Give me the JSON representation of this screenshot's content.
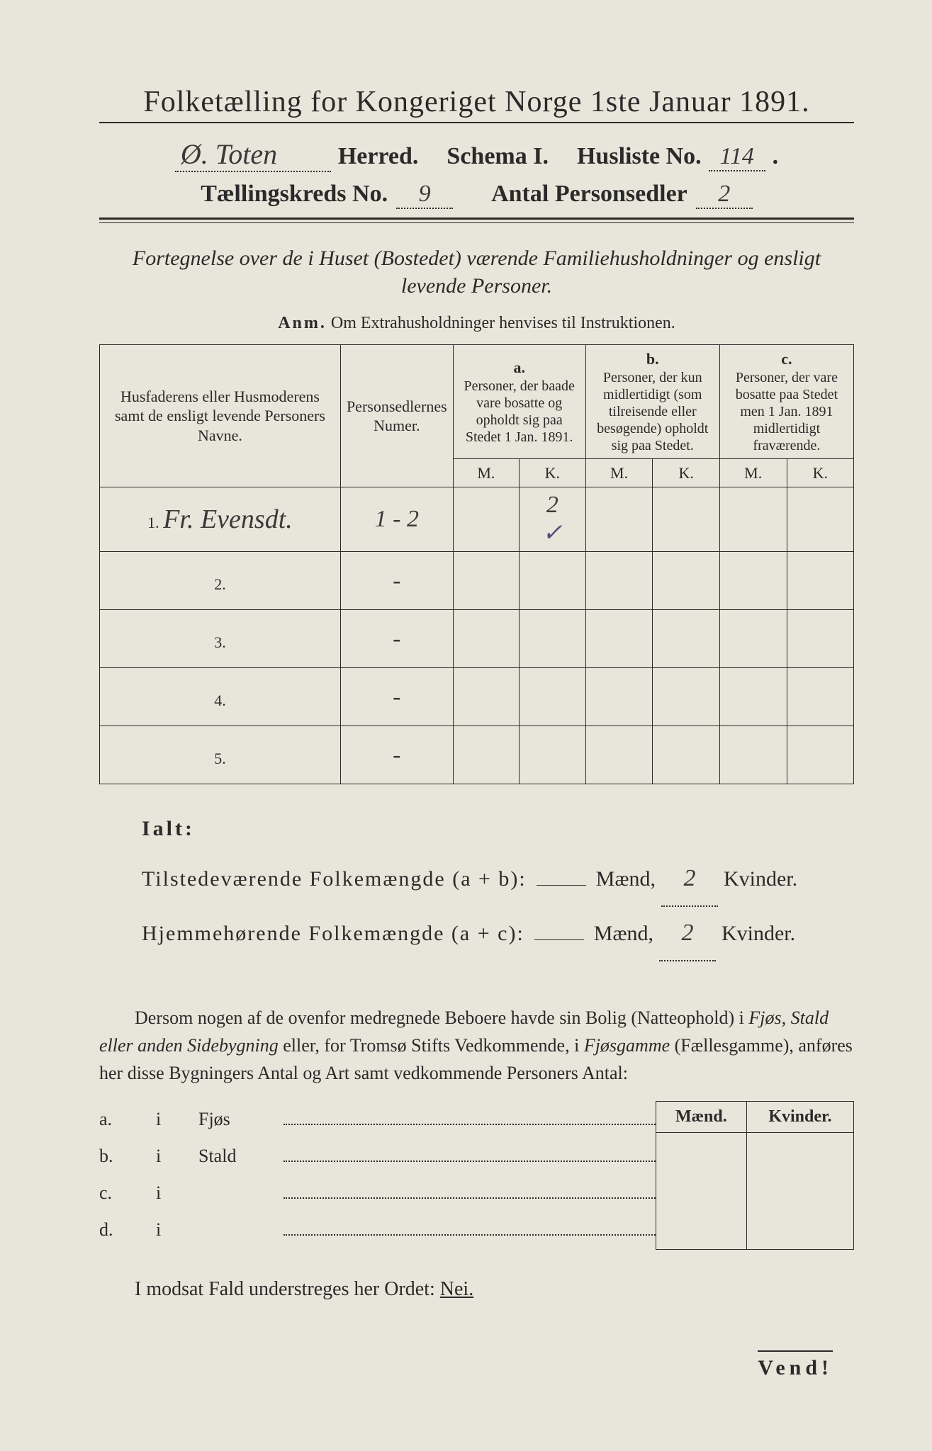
{
  "header": {
    "title": "Folketælling for Kongeriget Norge 1ste Januar 1891.",
    "herred_value": "Ø. Toten",
    "herred_label": "Herred.",
    "schema_label": "Schema I.",
    "husliste_label": "Husliste No.",
    "husliste_value": "114",
    "kreds_label": "Tællingskreds No.",
    "kreds_value": "9",
    "personsedler_label": "Antal Personsedler",
    "personsedler_value": "2"
  },
  "subtitle": "Fortegnelse over de i Huset (Bostedet) værende Familiehusholdninger og ensligt levende Personer.",
  "anm": {
    "label": "Anm.",
    "text": "Om Extrahusholdninger henvises til Instruktionen."
  },
  "table": {
    "col1": "Husfaderens eller Husmoderens samt de ensligt levende Personers Navne.",
    "col2": "Personsedlernes Numer.",
    "col_a_label": "a.",
    "col_a_desc": "Personer, der baade vare bosatte og opholdt sig paa Stedet 1 Jan. 1891.",
    "col_b_label": "b.",
    "col_b_desc": "Personer, der kun midlertidigt (som tilreisende eller besøgende) opholdt sig paa Stedet.",
    "col_c_label": "c.",
    "col_c_desc": "Personer, der vare bosatte paa Stedet men 1 Jan. 1891 midlertidigt fraværende.",
    "m": "M.",
    "k": "K.",
    "rows": [
      {
        "num": "1.",
        "name": "Fr. Evensdt.",
        "numer": "1 - 2",
        "a_m": "",
        "a_k": "2",
        "a_k2": "✓",
        "b_m": "",
        "b_k": "",
        "c_m": "",
        "c_k": ""
      },
      {
        "num": "2.",
        "name": "",
        "numer": "-",
        "a_m": "",
        "a_k": "",
        "b_m": "",
        "b_k": "",
        "c_m": "",
        "c_k": ""
      },
      {
        "num": "3.",
        "name": "",
        "numer": "-",
        "a_m": "",
        "a_k": "",
        "b_m": "",
        "b_k": "",
        "c_m": "",
        "c_k": ""
      },
      {
        "num": "4.",
        "name": "",
        "numer": "-",
        "a_m": "",
        "a_k": "",
        "b_m": "",
        "b_k": "",
        "c_m": "",
        "c_k": ""
      },
      {
        "num": "5.",
        "name": "",
        "numer": "-",
        "a_m": "",
        "a_k": "",
        "b_m": "",
        "b_k": "",
        "c_m": "",
        "c_k": ""
      }
    ]
  },
  "tally": {
    "ialt": "Ialt:",
    "line1_label": "Tilstedeværende Folkemængde (a + b):",
    "line2_label": "Hjemmehørende Folkemængde (a + c):",
    "maend": "Mænd,",
    "kvinder": "Kvinder.",
    "line1_m": "",
    "line1_k": "2",
    "line2_m": "",
    "line2_k": "2"
  },
  "paragraph": {
    "p1a": "Dersom nogen af de ovenfor medregnede Beboere havde sin Bolig (Natteophold) i ",
    "p1b": "Fjøs, Stald eller anden Sidebygning",
    "p1c": " eller, for Tromsø Stifts Vedkommende, i ",
    "p1d": "Fjøsgamme",
    "p1e": " (Fællesgamme), anføres her disse Bygningers Antal og Art samt vedkommende Personers Antal:"
  },
  "bygning": {
    "maend": "Mænd.",
    "kvinder": "Kvinder.",
    "rows": [
      {
        "prefix": "a.",
        "i": "i",
        "type": "Fjøs"
      },
      {
        "prefix": "b.",
        "i": "i",
        "type": "Stald"
      },
      {
        "prefix": "c.",
        "i": "i",
        "type": ""
      },
      {
        "prefix": "d.",
        "i": "i",
        "type": ""
      }
    ]
  },
  "modsat": {
    "text": "I modsat Fald understreges her Ordet: ",
    "nei": "Nei."
  },
  "vend": "Vend!",
  "colors": {
    "background": "#e8e6da",
    "text": "#2a2a2a",
    "handwriting": "#3a3a3a"
  }
}
